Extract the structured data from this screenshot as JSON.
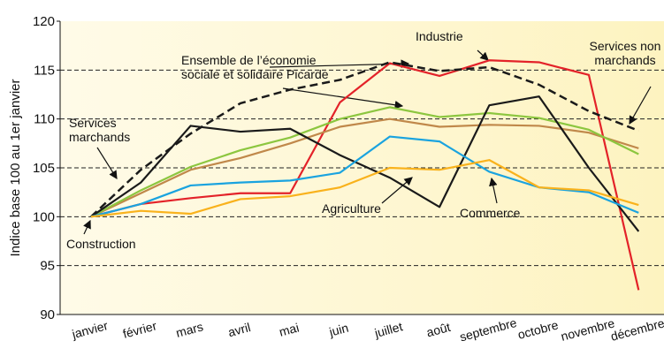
{
  "chart_data": {
    "type": "line",
    "y_label": "Indice base 100 au 1er janvier",
    "categories": [
      "janvier",
      "février",
      "mars",
      "avril",
      "mai",
      "juin",
      "juillet",
      "août",
      "septembre",
      "octobre",
      "novembre",
      "décembre"
    ],
    "series": [
      {
        "name": "Industrie",
        "color": "#e32229",
        "values": [
          100,
          101.3,
          101.9,
          102.4,
          102.4,
          111.7,
          115.7,
          114.4,
          116,
          115.8,
          114.5,
          92.5
        ]
      },
      {
        "name": "Ensemble de l’économie sociale et solidaire Picarde",
        "color": "#1a1a1a",
        "dashed": true,
        "values": [
          100,
          104.8,
          108.5,
          111.6,
          113,
          114,
          115.8,
          114.9,
          115.3,
          113.5,
          110.8,
          108.8
        ]
      },
      {
        "name": "Services non marchands",
        "color": "#c0884a",
        "values": [
          100,
          102.4,
          104.8,
          106,
          107.5,
          109.2,
          110,
          109.2,
          109.4,
          109.3,
          108.6,
          107
        ]
      },
      {
        "name": "Services marchands",
        "color": "#8cc63f",
        "values": [
          100,
          102.7,
          105.1,
          106.8,
          108.1,
          110,
          111.2,
          110.2,
          110.6,
          110.1,
          108.9,
          106.4
        ]
      },
      {
        "name": "Agriculture",
        "color": "#1a1a1a",
        "values": [
          100,
          103.5,
          109.3,
          108.7,
          109,
          106.3,
          104,
          101,
          111.4,
          112.3,
          105,
          98.5
        ]
      },
      {
        "name": "Commerce",
        "color": "#1aa3df",
        "values": [
          100,
          101.3,
          103.2,
          103.5,
          103.7,
          104.5,
          108.2,
          107.7,
          104.6,
          103,
          102.5,
          100.4
        ]
      },
      {
        "name": "Construction",
        "color": "#f9b21c",
        "values": [
          100,
          100.6,
          100.3,
          101.8,
          102.1,
          103,
          105,
          104.8,
          105.8,
          103,
          102.7,
          101.2
        ]
      }
    ],
    "ylim": [
      90,
      120
    ],
    "yticks": [
      90,
      95,
      100,
      105,
      110,
      115,
      120
    ],
    "grid": true
  }
}
